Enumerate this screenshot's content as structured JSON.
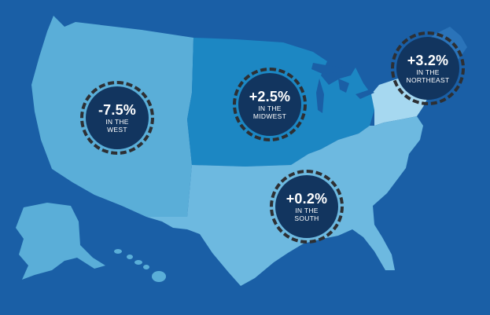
{
  "colors": {
    "background": "#1a5fa6",
    "west": "#5aaed8",
    "midwest": "#1c87c3",
    "south": "#6db9e0",
    "northeast": "#a6d8f0",
    "northeast_upper": "#2a73b9",
    "badge_fill": "#12355f",
    "badge_ring": "#2d2f33",
    "badge_text": "#ffffff"
  },
  "regions": [
    {
      "id": "west",
      "value": "-7.5%",
      "line1": "IN THE",
      "line2": "WEST"
    },
    {
      "id": "midwest",
      "value": "+2.5%",
      "line1": "IN THE",
      "line2": "MIDWEST"
    },
    {
      "id": "northeast",
      "value": "+3.2%",
      "line1": "IN THE",
      "line2": "NORTHEAST"
    },
    {
      "id": "south",
      "value": "+0.2%",
      "line1": "IN THE",
      "line2": "SOUTH"
    }
  ]
}
